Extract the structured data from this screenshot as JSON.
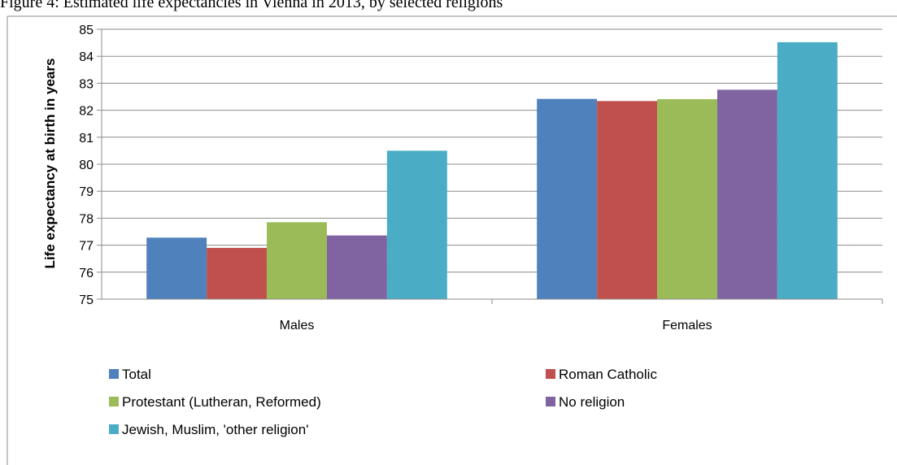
{
  "figure": {
    "caption": "Figure 4: Estimated life expectancies in Vienna in 2013, by selected religions"
  },
  "chart_data": {
    "type": "bar",
    "categories": [
      "Males",
      "Females"
    ],
    "series": [
      {
        "name": "Total",
        "color": "#4F81BD",
        "values": [
          77.28,
          82.42
        ]
      },
      {
        "name": "Roman Catholic",
        "color": "#C0504D",
        "values": [
          76.9,
          82.34
        ]
      },
      {
        "name": "Protestant (Lutheran, Reformed)",
        "color": "#9BBB59",
        "values": [
          77.85,
          82.41
        ]
      },
      {
        "name": "No religion",
        "color": "#8064A2",
        "values": [
          77.36,
          82.76
        ]
      },
      {
        "name": "Jewish, Muslim, 'other religion'",
        "color": "#4BACC6",
        "values": [
          80.5,
          84.52
        ]
      }
    ],
    "ylabel": "Life expectancy at birth in years",
    "xlabel": "",
    "ylim": [
      75,
      85
    ],
    "yticks": [
      75,
      76,
      77,
      78,
      79,
      80,
      81,
      82,
      83,
      84,
      85
    ],
    "grid": true,
    "legend_position": "bottom"
  }
}
